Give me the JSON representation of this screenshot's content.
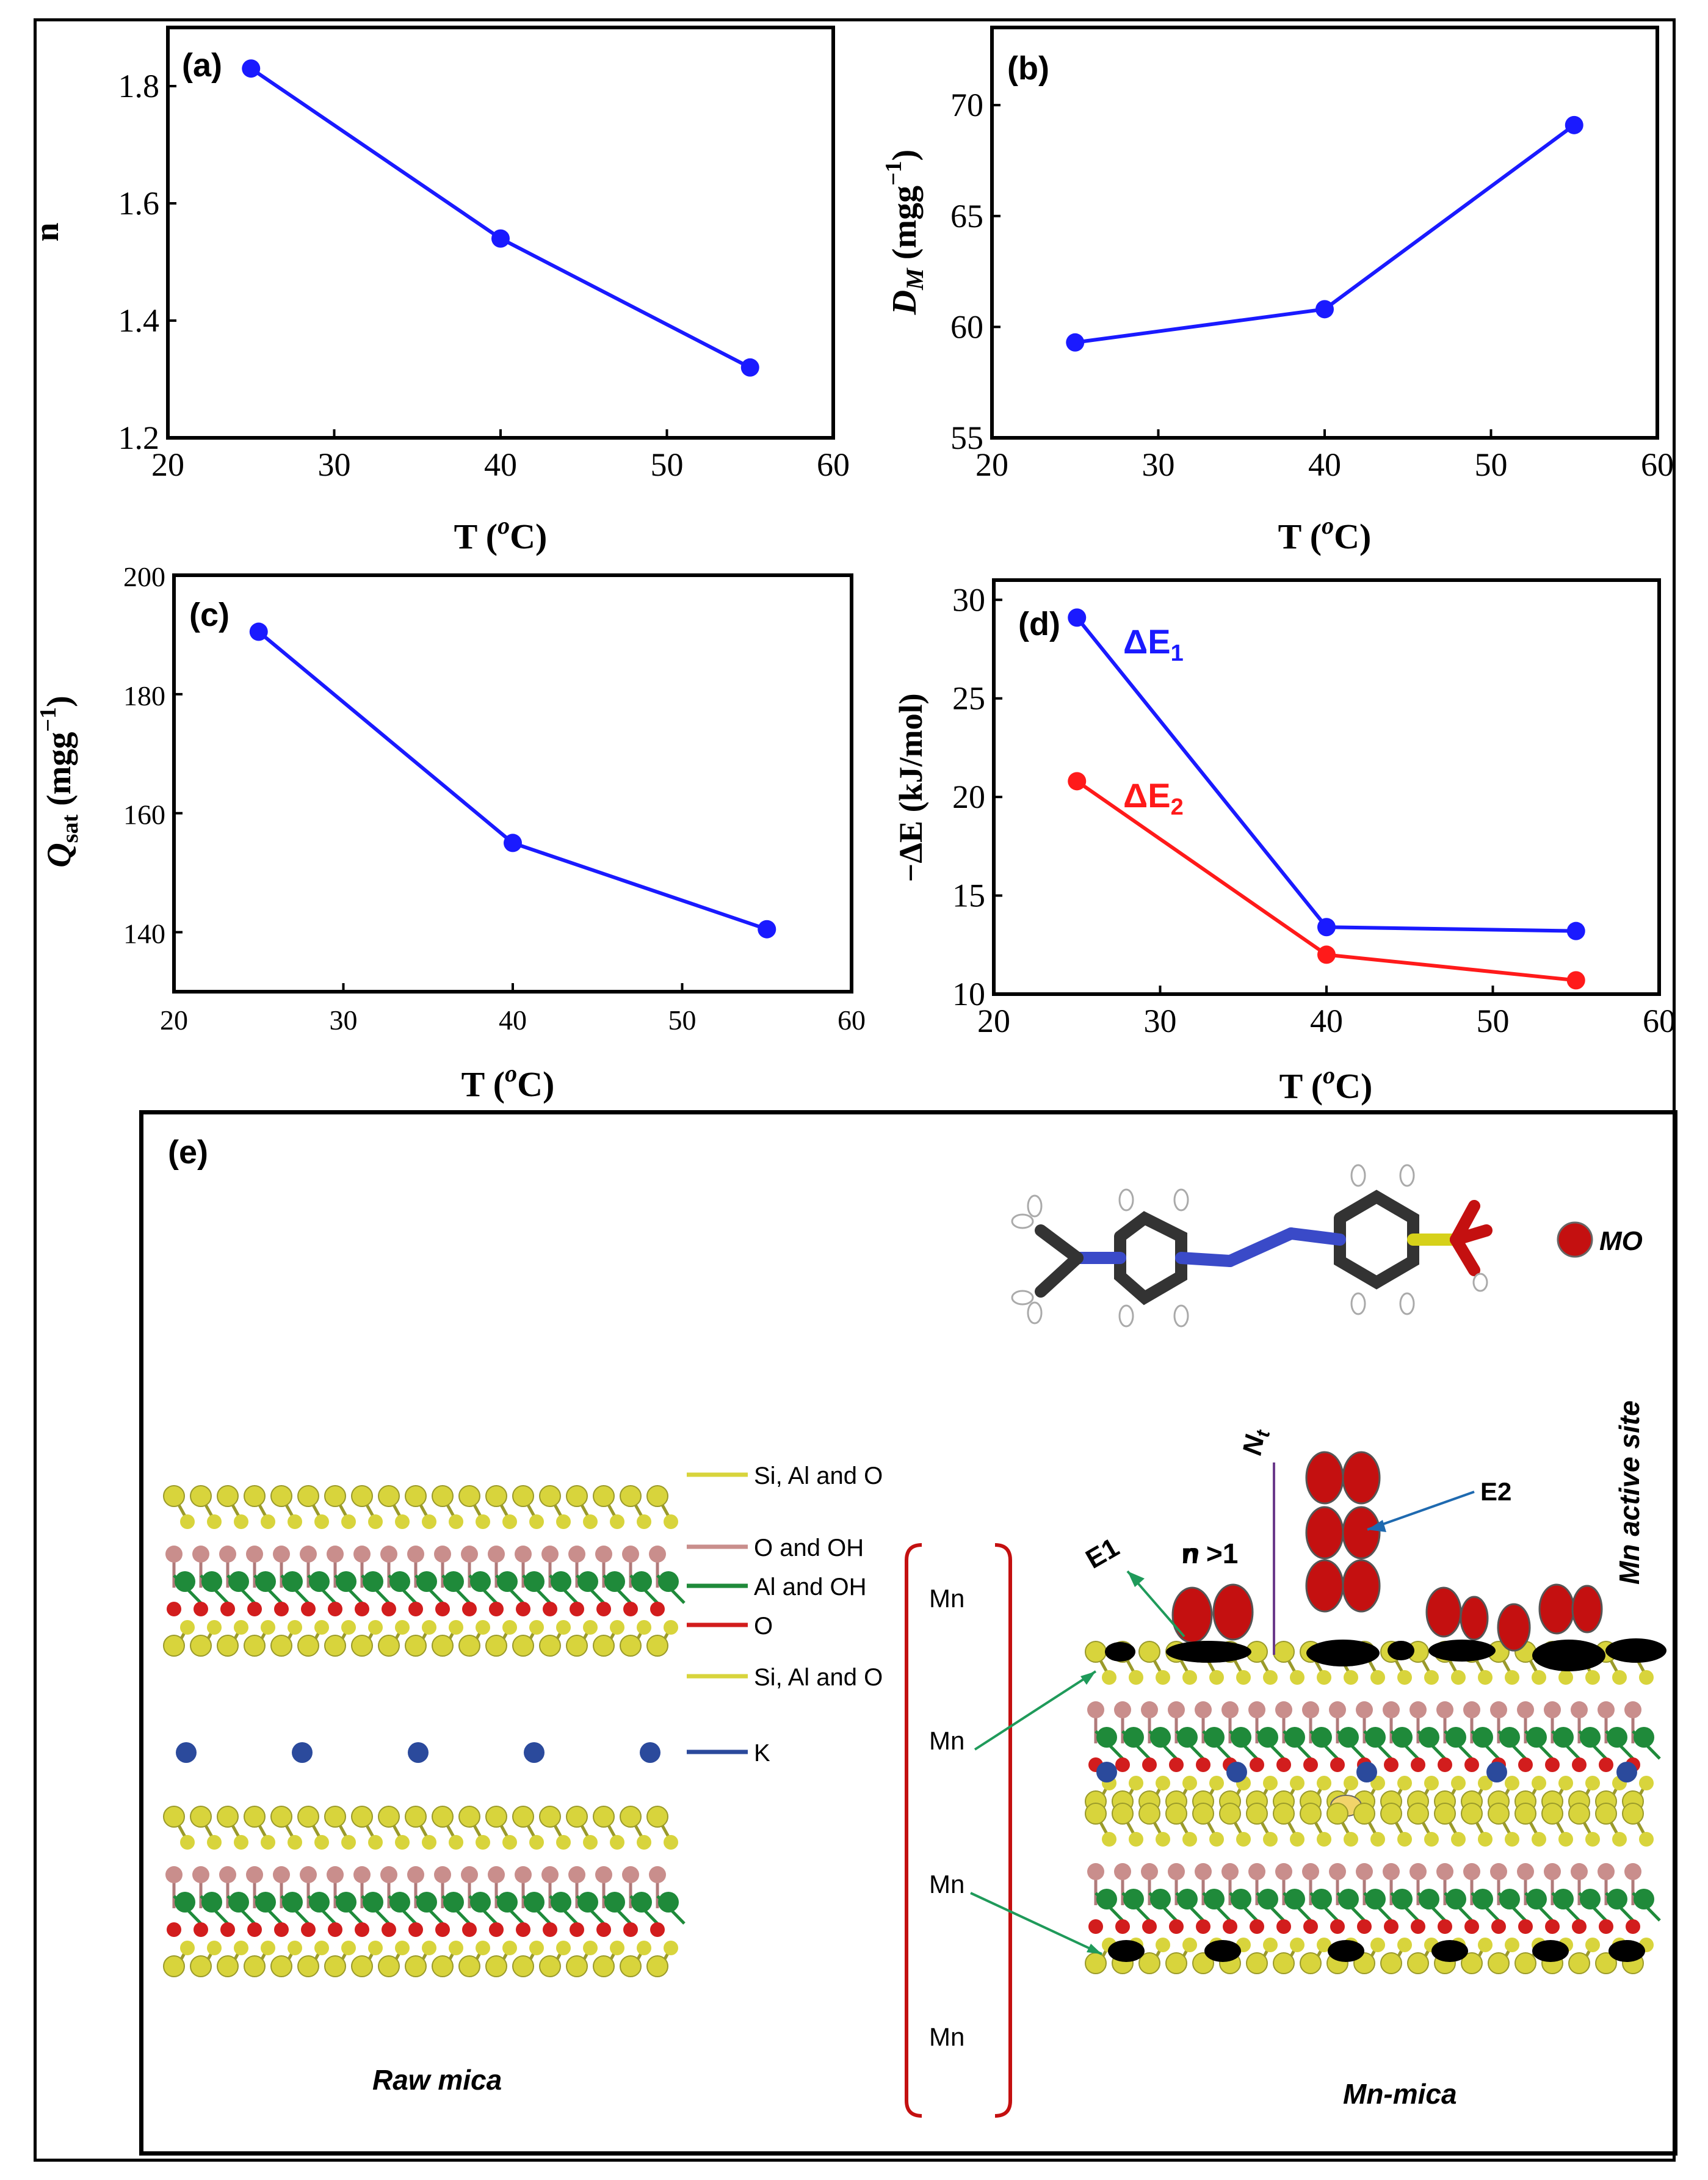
{
  "chart_data": [
    {
      "id": "a",
      "panel_label": "(a)",
      "type": "line",
      "x": [
        25,
        40,
        55
      ],
      "series": [
        {
          "name": "n",
          "values": [
            1.83,
            1.54,
            1.32
          ],
          "color": "#1a1aff"
        }
      ],
      "xlabel": "T (°C)",
      "ylabel": "n",
      "xlim": [
        20,
        60
      ],
      "ylim": [
        1.2,
        1.9
      ],
      "xticks": [
        "20",
        "30",
        "40",
        "50",
        "60"
      ],
      "yticks": [
        "1.2",
        "1.4",
        "1.6",
        "1.8"
      ]
    },
    {
      "id": "b",
      "panel_label": "(b)",
      "type": "line",
      "x": [
        25,
        40,
        55
      ],
      "series": [
        {
          "name": "D_M",
          "values": [
            59.3,
            60.8,
            69.1
          ],
          "color": "#1a1aff"
        }
      ],
      "xlabel": "T (°C)",
      "ylabel": "D_M (mgg⁻¹)",
      "xlim": [
        20,
        60
      ],
      "ylim": [
        55,
        73.5
      ],
      "xticks": [
        "20",
        "30",
        "40",
        "50",
        "60"
      ],
      "yticks": [
        "55",
        "60",
        "65",
        "70"
      ]
    },
    {
      "id": "c",
      "panel_label": "(c)",
      "type": "line",
      "x": [
        25,
        40,
        55
      ],
      "series": [
        {
          "name": "Q_sat",
          "values": [
            190.5,
            155,
            140.5
          ],
          "color": "#1a1aff"
        }
      ],
      "xlabel": "T (°C)",
      "ylabel": "Q_sat (mgg⁻¹)",
      "xlim": [
        20,
        60
      ],
      "ylim": [
        130,
        200
      ],
      "xticks": [
        "20",
        "30",
        "40",
        "50",
        "60"
      ],
      "yticks": [
        "140",
        "160",
        "180",
        "200"
      ]
    },
    {
      "id": "d",
      "panel_label": "(d)",
      "type": "line",
      "x": [
        25,
        40,
        55
      ],
      "series": [
        {
          "name": "ΔE1",
          "values": [
            29.1,
            13.4,
            13.2
          ],
          "color": "#1a1aff"
        },
        {
          "name": "ΔE2",
          "values": [
            20.8,
            12.0,
            10.7
          ],
          "color": "#ff1a1a"
        }
      ],
      "xlabel": "T (°C)",
      "ylabel": "−ΔE (kJ/mol)",
      "xlim": [
        20,
        60
      ],
      "ylim": [
        10,
        31
      ],
      "xticks": [
        "20",
        "30",
        "40",
        "50",
        "60"
      ],
      "yticks": [
        "10",
        "15",
        "20",
        "25",
        "30"
      ]
    }
  ],
  "axis_text": {
    "a_x": "T (",
    "a_xu": "o",
    "a_xc": "C)",
    "b_x": "T (",
    "b_xu": "o",
    "b_xc": "C)",
    "c_x": "T (",
    "c_xu": "o",
    "c_xc": "C)",
    "d_x": "T (",
    "d_xu": "o",
    "d_xc": "C)",
    "a_y": "n",
    "b_y_main": "D",
    "b_y_sub": "M",
    "b_y_unit": " (mgg",
    "b_y_exp": "−1",
    "b_y_close": ")",
    "c_y_main": "Q",
    "c_y_sub": "sat",
    "c_y_unit": " (mgg",
    "c_y_exp": "−1",
    "c_y_close": ")",
    "d_y": "−ΔE (kJ/mol)",
    "d_leg1": "ΔE",
    "d_leg1_sub": "1",
    "d_leg2": "ΔE",
    "d_leg2_sub": "2"
  },
  "panel_e": {
    "label": "(e)",
    "mo_label": "MO",
    "mn_active_site": "Mn active site",
    "legend": [
      "Si, Al and O",
      "O and OH",
      "Al and OH",
      "O",
      "Si, Al and O",
      "K"
    ],
    "mn_labels": [
      "Mn",
      "Mn",
      "Mn",
      "Mn"
    ],
    "e1": "E1",
    "e2": "E2",
    "n_gt1": "n >1",
    "nt": "N",
    "nt_sub": "t",
    "raw_mica": "Raw mica",
    "mn_mica": "Mn-mica",
    "colors": {
      "yellow": "#d8d43c",
      "pink": "#c98e8c",
      "green": "#1f8a3a",
      "red": "#d21d1d",
      "blue": "#2b4a9c",
      "dye_red": "#c41010"
    }
  }
}
